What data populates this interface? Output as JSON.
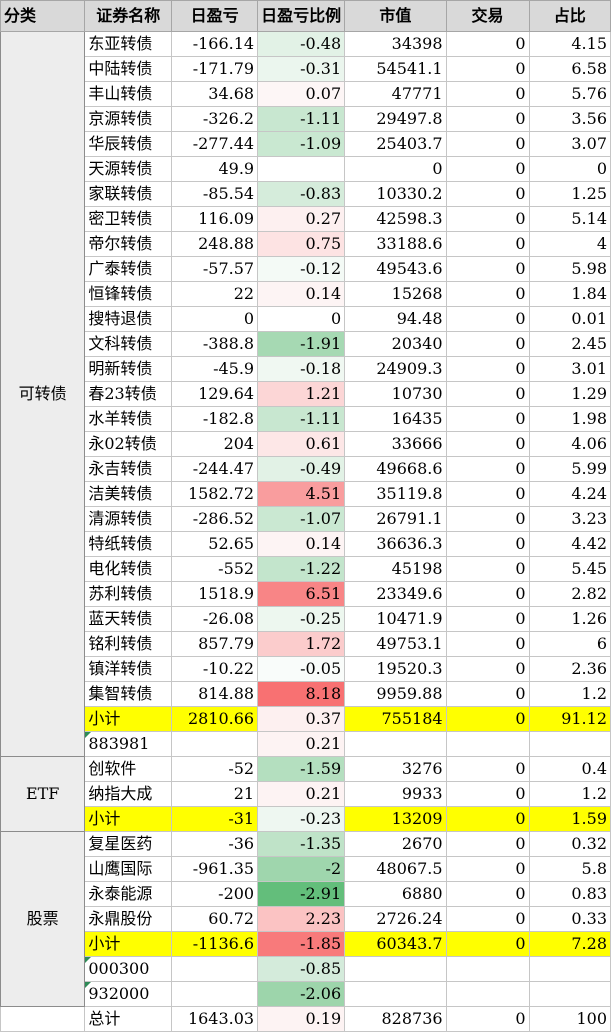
{
  "header": {
    "category": "分类",
    "name": "证券名称",
    "pnl": "日盈亏",
    "pnl_pct": "日盈亏比例",
    "market_value": "市值",
    "trade": "交易",
    "share": "占比"
  },
  "colors": {
    "subtotal": "#ffff00",
    "header": "#d9d9d9",
    "category": "#ededed",
    "neg_strong": "#63be7b",
    "neg_weak": "#e9f5ec",
    "pos_strong": "#f8696b",
    "pos_weak": "#fdeaea"
  },
  "groups": [
    {
      "category": "可转债",
      "rows": [
        {
          "name": "东亚转债",
          "pnl": "-166.14",
          "pct": "-0.48",
          "mv": "34398",
          "trade": "0",
          "share": "4.15",
          "bg": "#e2f2e6"
        },
        {
          "name": "中陆转债",
          "pnl": "-171.79",
          "pct": "-0.31",
          "mv": "54541.1",
          "trade": "0",
          "share": "6.58",
          "bg": "#ebf6ee"
        },
        {
          "name": "丰山转债",
          "pnl": "34.68",
          "pct": "0.07",
          "mv": "47771",
          "trade": "0",
          "share": "5.76",
          "bg": "#fdf6f6"
        },
        {
          "name": "京源转债",
          "pnl": "-326.2",
          "pct": "-1.11",
          "mv": "29497.8",
          "trade": "0",
          "share": "3.56",
          "bg": "#c8e7d0"
        },
        {
          "name": "华辰转债",
          "pnl": "-277.44",
          "pct": "-1.09",
          "mv": "25403.7",
          "trade": "0",
          "share": "3.07",
          "bg": "#c9e8d1"
        },
        {
          "name": "天源转债",
          "pnl": "49.9",
          "pct": "",
          "mv": "0",
          "trade": "0",
          "share": "0",
          "bg": "#ffffff"
        },
        {
          "name": "家联转债",
          "pnl": "-85.54",
          "pct": "-0.83",
          "mv": "10330.2",
          "trade": "0",
          "share": "1.25",
          "bg": "#d5ecdb"
        },
        {
          "name": "密卫转债",
          "pnl": "116.09",
          "pct": "0.27",
          "mv": "42598.3",
          "trade": "0",
          "share": "5.14",
          "bg": "#fdf0f0"
        },
        {
          "name": "帝尔转债",
          "pnl": "248.88",
          "pct": "0.75",
          "mv": "33188.6",
          "trade": "0",
          "share": "4",
          "bg": "#fde3e3"
        },
        {
          "name": "广泰转债",
          "pnl": "-57.57",
          "pct": "-0.12",
          "mv": "49543.6",
          "trade": "0",
          "share": "5.98",
          "bg": "#f4faf6"
        },
        {
          "name": "恒锋转债",
          "pnl": "22",
          "pct": "0.14",
          "mv": "15268",
          "trade": "0",
          "share": "1.84",
          "bg": "#fdf4f4"
        },
        {
          "name": "搜特退债",
          "pnl": "0",
          "pct": "0",
          "mv": "94.48",
          "trade": "0",
          "share": "0.01",
          "bg": "#ffffff"
        },
        {
          "name": "文科转债",
          "pnl": "-388.8",
          "pct": "-1.91",
          "mv": "20340",
          "trade": "0",
          "share": "2.45",
          "bg": "#a6d9b3"
        },
        {
          "name": "明新转债",
          "pnl": "-45.9",
          "pct": "-0.18",
          "mv": "24909.3",
          "trade": "0",
          "share": "3.01",
          "bg": "#f0f8f2"
        },
        {
          "name": "春23转债",
          "pnl": "129.64",
          "pct": "1.21",
          "mv": "10730",
          "trade": "0",
          "share": "1.29",
          "bg": "#fcd6d6"
        },
        {
          "name": "水羊转债",
          "pnl": "-182.8",
          "pct": "-1.11",
          "mv": "16435",
          "trade": "0",
          "share": "1.98",
          "bg": "#c8e7d0"
        },
        {
          "name": "永02转债",
          "pnl": "204",
          "pct": "0.61",
          "mv": "33666",
          "trade": "0",
          "share": "4.06",
          "bg": "#fde7e7"
        },
        {
          "name": "永吉转债",
          "pnl": "-244.47",
          "pct": "-0.49",
          "mv": "49668.6",
          "trade": "0",
          "share": "5.99",
          "bg": "#e2f2e6"
        },
        {
          "name": "洁美转债",
          "pnl": "1582.72",
          "pct": "4.51",
          "mv": "35119.8",
          "trade": "0",
          "share": "4.24",
          "bg": "#f99d9e"
        },
        {
          "name": "清源转债",
          "pnl": "-286.52",
          "pct": "-1.07",
          "mv": "26791.1",
          "trade": "0",
          "share": "3.23",
          "bg": "#cae8d2"
        },
        {
          "name": "特纸转债",
          "pnl": "52.65",
          "pct": "0.14",
          "mv": "36636.3",
          "trade": "0",
          "share": "4.42",
          "bg": "#fdf4f4"
        },
        {
          "name": "电化转债",
          "pnl": "-552",
          "pct": "-1.22",
          "mv": "45198",
          "trade": "0",
          "share": "5.45",
          "bg": "#c3e5cc"
        },
        {
          "name": "苏利转债",
          "pnl": "1518.9",
          "pct": "6.51",
          "mv": "23349.6",
          "trade": "0",
          "share": "2.82",
          "bg": "#f88586"
        },
        {
          "name": "蓝天转债",
          "pnl": "-26.08",
          "pct": "-0.25",
          "mv": "10471.9",
          "trade": "0",
          "share": "1.26",
          "bg": "#edf7ef"
        },
        {
          "name": "铭利转债",
          "pnl": "857.79",
          "pct": "1.72",
          "mv": "49753.1",
          "trade": "0",
          "share": "6",
          "bg": "#fbcccc"
        },
        {
          "name": "镇洋转债",
          "pnl": "-10.22",
          "pct": "-0.05",
          "mv": "19520.3",
          "trade": "0",
          "share": "2.36",
          "bg": "#f9fcfa"
        },
        {
          "name": "集智转债",
          "pnl": "814.88",
          "pct": "8.18",
          "mv": "9959.88",
          "trade": "0",
          "share": "1.2",
          "bg": "#f87172"
        }
      ],
      "subtotal": {
        "label": "小计",
        "pnl": "2810.66",
        "pct": "0.37",
        "mv": "755184",
        "trade": "0",
        "share": "91.12",
        "bg": "#fdf0f0"
      },
      "extras": [
        {
          "code": "883981",
          "pct": "0.21",
          "bg": "#fdf3f3"
        }
      ]
    },
    {
      "category": "ETF",
      "rows": [
        {
          "name": "创软件",
          "pnl": "-52",
          "pct": "-1.59",
          "mv": "3276",
          "trade": "0",
          "share": "0.4",
          "bg": "#b4dfbf"
        },
        {
          "name": "纳指大成",
          "pnl": "21",
          "pct": "0.21",
          "mv": "9933",
          "trade": "0",
          "share": "1.2",
          "bg": "#fdf3f3"
        }
      ],
      "subtotal": {
        "label": "小计",
        "pnl": "-31",
        "pct": "-0.23",
        "mv": "13209",
        "trade": "0",
        "share": "1.59",
        "bg": "#eef7f1"
      },
      "extras": []
    },
    {
      "category": "股票",
      "rows": [
        {
          "name": "复星医药",
          "pnl": "-36",
          "pct": "-1.35",
          "mv": "2670",
          "trade": "0",
          "share": "0.32",
          "bg": "#bfe3c8"
        },
        {
          "name": "山鹰国际",
          "pnl": "-961.35",
          "pct": "-2",
          "mv": "48067.5",
          "trade": "0",
          "share": "5.8",
          "bg": "#9fd6ad"
        },
        {
          "name": "永泰能源",
          "pnl": "-200",
          "pct": "-2.91",
          "mv": "6880",
          "trade": "0",
          "share": "0.83",
          "bg": "#63be7b"
        },
        {
          "name": "永鼎股份",
          "pnl": "60.72",
          "pct": "2.23",
          "mv": "2726.24",
          "trade": "0",
          "share": "0.33",
          "bg": "#fbc3c3"
        }
      ],
      "subtotal": {
        "label": "小计",
        "pnl": "-1136.6",
        "pct": "-1.85",
        "mv": "60343.7",
        "trade": "0",
        "share": "7.28",
        "bg": "#f87a7b"
      },
      "extras": [
        {
          "code": "000300",
          "pct": "-0.85",
          "bg": "#d4ebdb"
        },
        {
          "code": "932000",
          "pct": "-2.06",
          "bg": "#9dd5ab"
        }
      ]
    }
  ],
  "total": {
    "label": "总计",
    "pnl": "1643.03",
    "pct": "0.19",
    "mv": "828736",
    "trade": "0",
    "share": "100",
    "bg": "#fdf3f3"
  }
}
